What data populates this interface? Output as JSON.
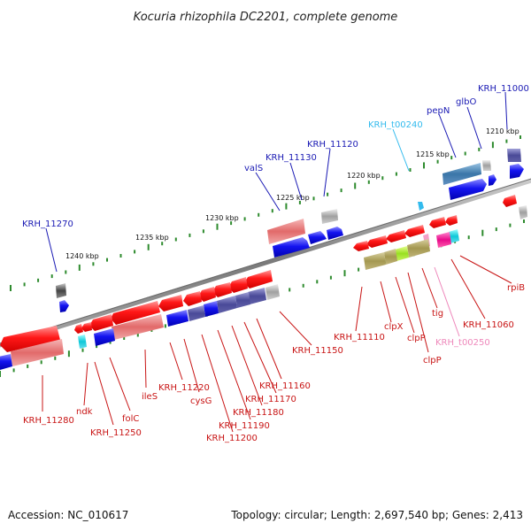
{
  "title": "Kocuria rhizophila DC2201, complete genome",
  "footer": {
    "accession": "Accession: NC_010617",
    "summary": "Topology: circular; Length: 2,697,540 bp; Genes: 2,413"
  },
  "colors": {
    "backbone": "#8a8a8a",
    "tick": "#2e8b2e",
    "forward_label": "#1a1ab4",
    "reverse_label": "#c81414",
    "trna_label": "#33bbee",
    "trna_reverse_label": "#ee88bb",
    "cds": "#ff1010",
    "gene_blue": "#1010ee",
    "pseudo_pink": "#e07070",
    "slate": "#5a5aa6",
    "olive": "#aaa060",
    "grey": "#aaaaaa",
    "steel": "#4a86b8"
  },
  "kbp_labels": [
    "1210 kbp",
    "1215 kbp",
    "1220 kbp",
    "1225 kbp",
    "1230 kbp",
    "1235 kbp",
    "1240 kbp"
  ],
  "forward_labels": [
    "KRH_11000",
    "glbO",
    "pepN",
    "KRH_11120",
    "KRH_11130",
    "valS",
    "KRH_11270"
  ],
  "trna_forward_label": "KRH_t00240",
  "reverse_labels": [
    "rpiB",
    "KRH_11060",
    "tig",
    "clpP",
    "clpP",
    "clpX",
    "KRH_11110",
    "KRH_11150",
    "KRH_11160",
    "KRH_11170",
    "KRH_11180",
    "KRH_11190",
    "KRH_11200",
    "cysG",
    "KRH_11220",
    "ileS",
    "folC",
    "KRH_11250",
    "ndk",
    "KRH_11280"
  ],
  "trna_reverse_label": "KRH_t00250"
}
